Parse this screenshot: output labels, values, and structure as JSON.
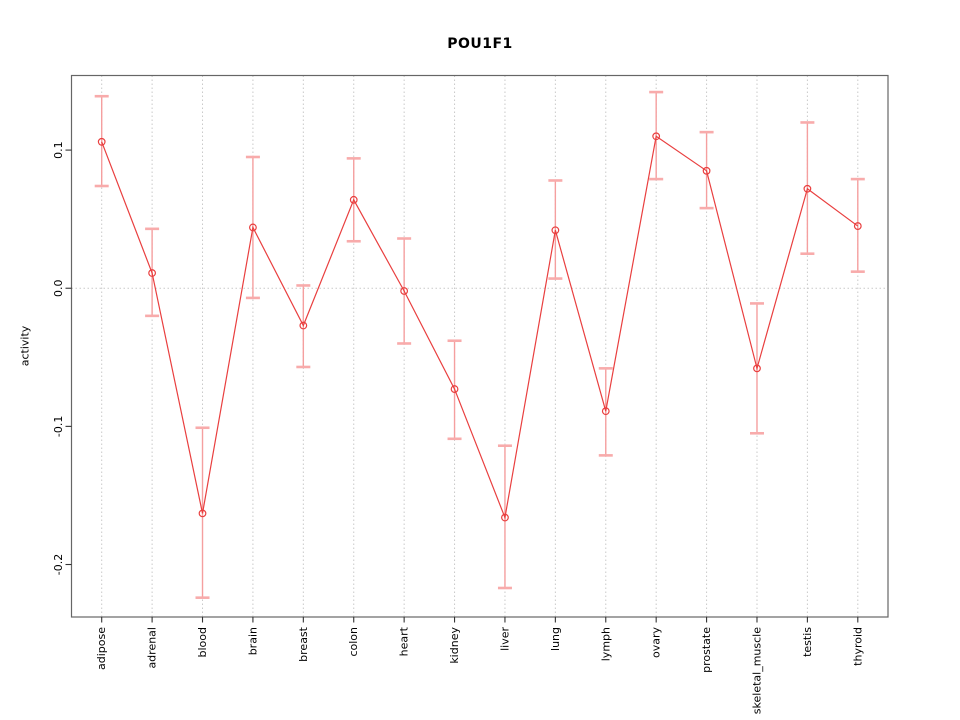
{
  "figure": {
    "title": "POU1F1"
  },
  "chart_data": {
    "type": "line",
    "title": "POU1F1",
    "xlabel": "",
    "ylabel": "activity",
    "legend": "none",
    "grid": "vertical dotted gridline at each category; dotted horizontal line at y=0",
    "marker": "open-circle",
    "error_bars": true,
    "categories": [
      "adipose",
      "adrenal",
      "blood",
      "brain",
      "breast",
      "colon",
      "heart",
      "kidney",
      "liver",
      "lung",
      "lymph",
      "ovary",
      "prostate",
      "skeletal_muscle",
      "testis",
      "thyroid"
    ],
    "series": [
      {
        "name": "activity",
        "values": [
          0.106,
          0.011,
          -0.163,
          0.044,
          -0.027,
          0.064,
          -0.002,
          -0.073,
          -0.166,
          0.042,
          -0.089,
          0.11,
          0.085,
          -0.058,
          0.072,
          0.045
        ],
        "error_low": [
          0.074,
          -0.02,
          -0.224,
          -0.007,
          -0.057,
          0.034,
          -0.04,
          -0.109,
          -0.217,
          0.007,
          -0.121,
          0.079,
          0.058,
          -0.105,
          0.025,
          0.012
        ],
        "error_high": [
          0.139,
          0.043,
          -0.101,
          0.095,
          0.002,
          0.094,
          0.036,
          -0.038,
          -0.114,
          0.078,
          -0.058,
          0.142,
          0.113,
          -0.011,
          0.12,
          0.079
        ]
      }
    ],
    "yticks": [
      0.1,
      0.0,
      -0.1,
      -0.2
    ],
    "ylim": [
      -0.238,
      0.154
    ],
    "colors": {
      "line": "#e93f3f",
      "marker": "#e93f3f",
      "error_bar": "#f59f9f",
      "error_cap": "#f8abab",
      "grid": "#c9c9c9",
      "axis_box": "#666666",
      "tick": "#333333",
      "text": "#000000",
      "background": "#ffffff"
    }
  }
}
